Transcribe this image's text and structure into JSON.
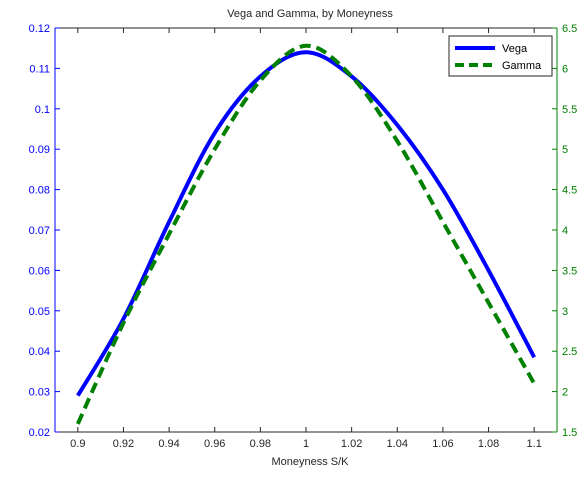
{
  "chart_data": {
    "type": "line",
    "title": "Vega and Gamma, by Moneyness",
    "xlabel": "Moneyness S/K",
    "ylabel_left": "",
    "ylabel_right": "",
    "xlim": [
      0.89,
      1.11
    ],
    "ylim_left": [
      0.02,
      0.12
    ],
    "ylim_right": [
      1.5,
      6.5
    ],
    "x_ticks": [
      "0.9",
      "0.92",
      "0.94",
      "0.96",
      "0.98",
      "1",
      "1.02",
      "1.04",
      "1.06",
      "1.08",
      "1.1"
    ],
    "y_left_ticks": [
      "0.02",
      "0.03",
      "0.04",
      "0.05",
      "0.06",
      "0.07",
      "0.08",
      "0.09",
      "0.1",
      "0.11",
      "0.12"
    ],
    "y_right_ticks": [
      "1.5",
      "2",
      "2.5",
      "3",
      "3.5",
      "4",
      "4.5",
      "5",
      "5.5",
      "6",
      "6.5"
    ],
    "grid": false,
    "legend_position": "top-right",
    "x": [
      0.9,
      0.92,
      0.94,
      0.96,
      0.98,
      1.0,
      1.02,
      1.04,
      1.06,
      1.08,
      1.1
    ],
    "series": [
      {
        "name": "Vega",
        "axis": "left",
        "color": "#0000ff",
        "style": "solid",
        "values": [
          0.029,
          0.048,
          0.072,
          0.094,
          0.108,
          0.114,
          0.108,
          0.096,
          0.08,
          0.06,
          0.0385
        ]
      },
      {
        "name": "Gamma",
        "axis": "right",
        "color": "#008000",
        "style": "dashed",
        "values": [
          1.6,
          2.85,
          3.95,
          5.0,
          5.85,
          6.28,
          5.9,
          5.1,
          4.1,
          3.1,
          2.1
        ]
      }
    ]
  }
}
